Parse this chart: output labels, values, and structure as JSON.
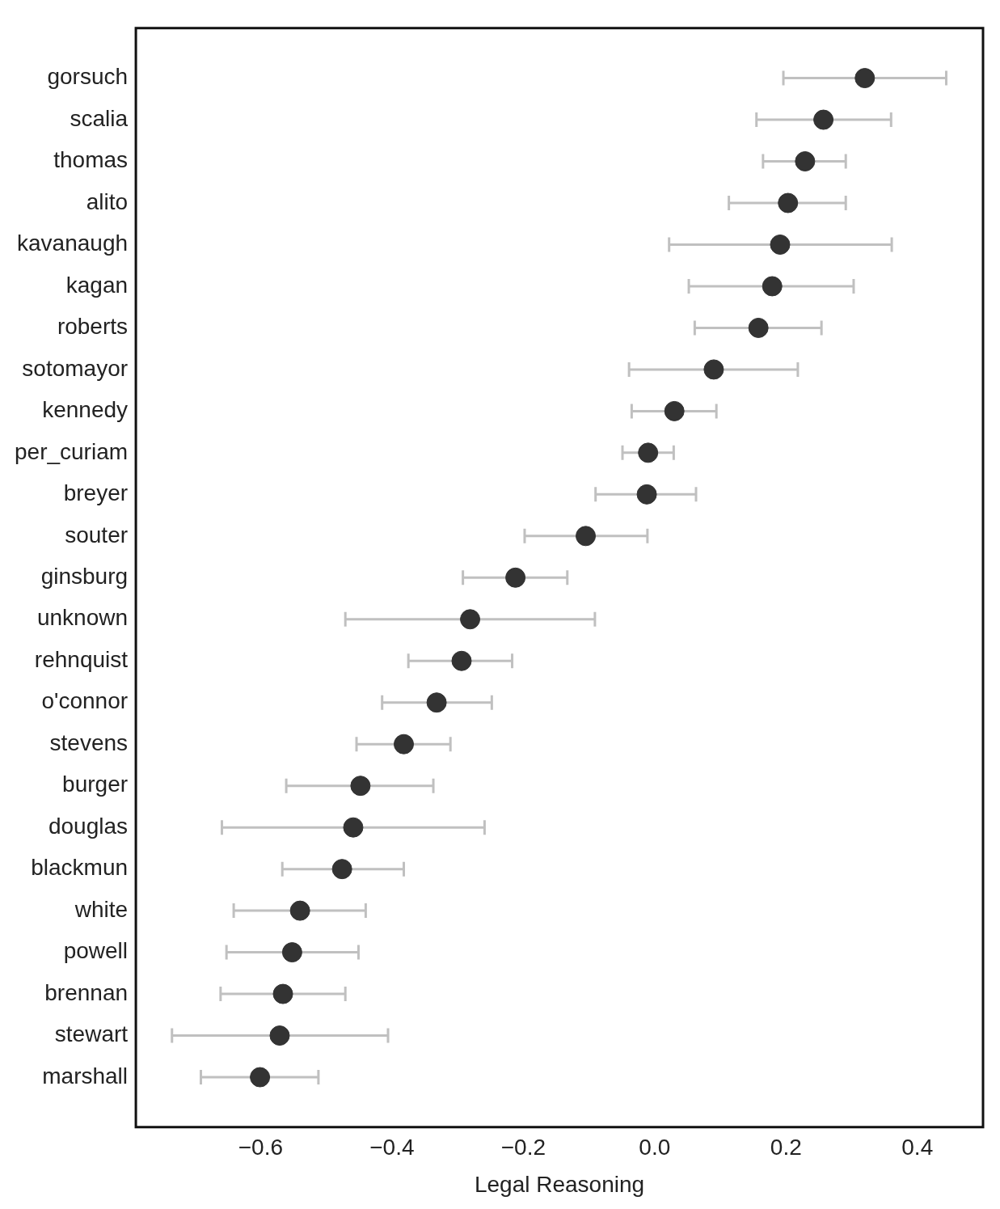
{
  "chart_data": {
    "type": "scatter",
    "orientation": "horizontal",
    "xlabel": "Legal Reasoning",
    "categories": [
      "gorsuch",
      "scalia",
      "thomas",
      "alito",
      "kavanaugh",
      "kagan",
      "roberts",
      "sotomayor",
      "kennedy",
      "per_curiam",
      "breyer",
      "souter",
      "ginsburg",
      "unknown",
      "rehnquist",
      "o'connor",
      "stevens",
      "burger",
      "douglas",
      "blackmun",
      "white",
      "powell",
      "brennan",
      "stewart",
      "marshall"
    ],
    "values": [
      0.32,
      0.257,
      0.229,
      0.203,
      0.191,
      0.179,
      0.158,
      0.09,
      0.03,
      -0.01,
      -0.012,
      -0.105,
      -0.212,
      -0.281,
      -0.294,
      -0.332,
      -0.382,
      -0.448,
      -0.459,
      -0.476,
      -0.54,
      -0.552,
      -0.566,
      -0.571,
      -0.601
    ],
    "errors": [
      [
        0.196,
        0.444
      ],
      [
        0.155,
        0.36
      ],
      [
        0.165,
        0.291
      ],
      [
        0.113,
        0.291
      ],
      [
        0.022,
        0.361
      ],
      [
        0.052,
        0.303
      ],
      [
        0.061,
        0.254
      ],
      [
        -0.039,
        0.218
      ],
      [
        -0.035,
        0.094
      ],
      [
        -0.049,
        0.029
      ],
      [
        -0.09,
        0.063
      ],
      [
        -0.198,
        -0.011
      ],
      [
        -0.292,
        -0.133
      ],
      [
        -0.471,
        -0.091
      ],
      [
        -0.375,
        -0.217
      ],
      [
        -0.415,
        -0.248
      ],
      [
        -0.454,
        -0.311
      ],
      [
        -0.561,
        -0.337
      ],
      [
        -0.659,
        -0.259
      ],
      [
        -0.567,
        -0.382
      ],
      [
        -0.641,
        -0.44
      ],
      [
        -0.652,
        -0.451
      ],
      [
        -0.661,
        -0.471
      ],
      [
        -0.735,
        -0.406
      ],
      [
        -0.691,
        -0.512
      ]
    ],
    "color": "#333333",
    "marker": "circle",
    "grid": false,
    "xlim": [
      -0.79,
      0.5
    ],
    "xticks": [
      {
        "value": -0.6,
        "label": "−0.6"
      },
      {
        "value": -0.4,
        "label": "−0.4"
      },
      {
        "value": -0.2,
        "label": "−0.2"
      },
      {
        "value": 0,
        "label": "0.0"
      },
      0.2,
      0.4
    ]
  }
}
